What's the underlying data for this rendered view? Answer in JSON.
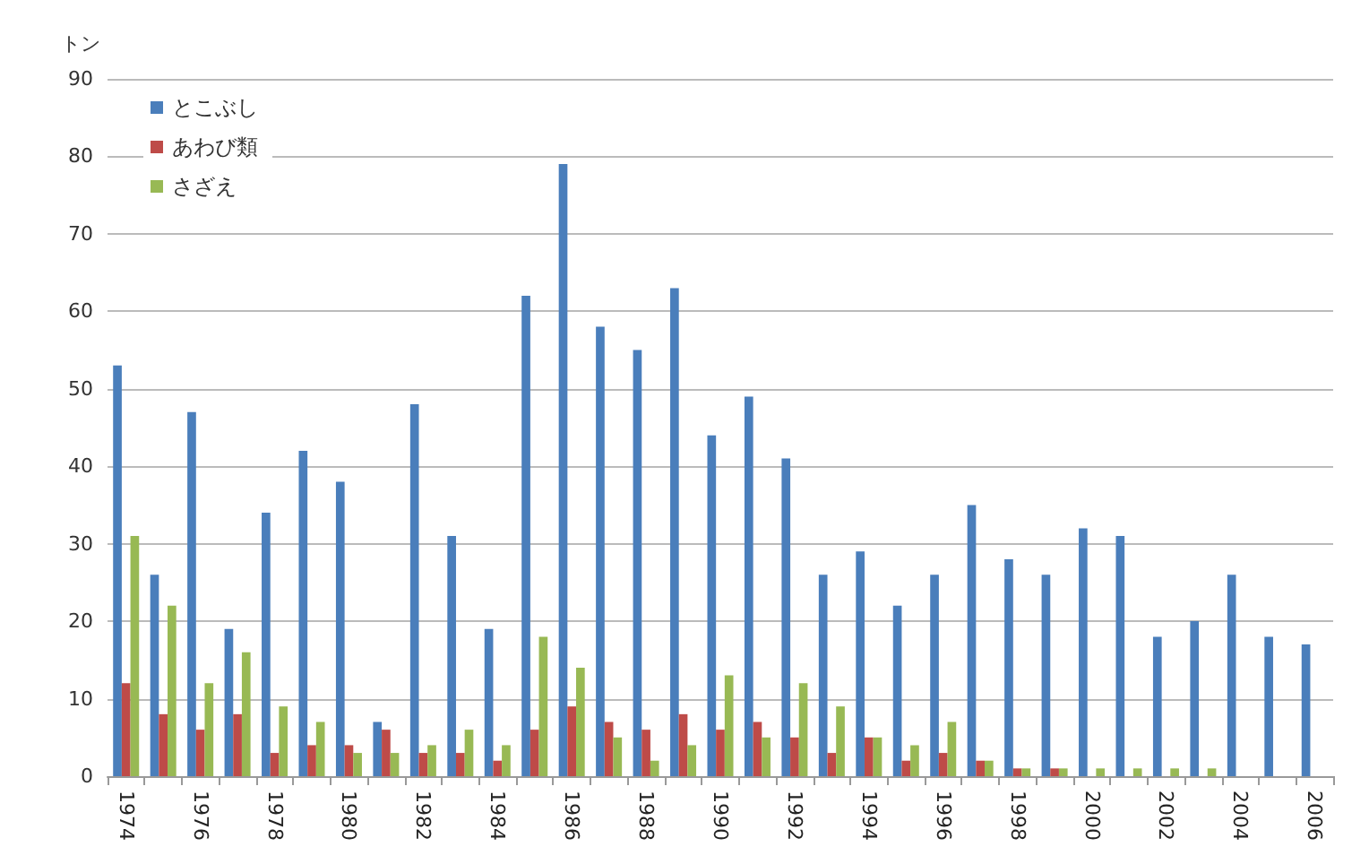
{
  "chart_data": {
    "type": "bar",
    "ylabel": "トン",
    "categories": [
      "1974",
      null,
      "1976",
      null,
      "1978",
      null,
      "1980",
      null,
      "1982",
      null,
      "1984",
      null,
      "1986",
      null,
      "1988",
      null,
      "1990",
      null,
      "1992",
      null,
      "1994",
      null,
      "1996",
      null,
      "1998",
      null,
      "2000",
      null,
      "2002",
      null,
      "2004",
      null,
      "2006"
    ],
    "series": [
      {
        "name": "とこぶし",
        "color": "#4a7ebb",
        "values": [
          53,
          26,
          47,
          19,
          34,
          42,
          38,
          7,
          48,
          31,
          19,
          62,
          79,
          58,
          55,
          63,
          44,
          49,
          41,
          26,
          29,
          22,
          26,
          35,
          28,
          26,
          32,
          31,
          18,
          20,
          26,
          18,
          17
        ]
      },
      {
        "name": "あわび類",
        "color": "#be4b48",
        "values": [
          12,
          8,
          6,
          8,
          3,
          4,
          4,
          6,
          3,
          3,
          2,
          6,
          9,
          7,
          6,
          8,
          6,
          7,
          5,
          3,
          5,
          2,
          3,
          2,
          1,
          1,
          0,
          0,
          0,
          0,
          0,
          0,
          0
        ]
      },
      {
        "name": "さざえ",
        "color": "#98b954",
        "values": [
          31,
          22,
          12,
          16,
          9,
          7,
          3,
          3,
          4,
          6,
          4,
          18,
          14,
          5,
          2,
          4,
          13,
          5,
          12,
          9,
          5,
          4,
          7,
          2,
          1,
          1,
          1,
          1,
          1,
          1,
          0,
          0,
          0
        ]
      }
    ],
    "ylim": [
      0,
      90
    ],
    "yticks": [
      0,
      10,
      20,
      30,
      40,
      50,
      60,
      70,
      80,
      90
    ],
    "grid": "y",
    "legend": "top left"
  }
}
